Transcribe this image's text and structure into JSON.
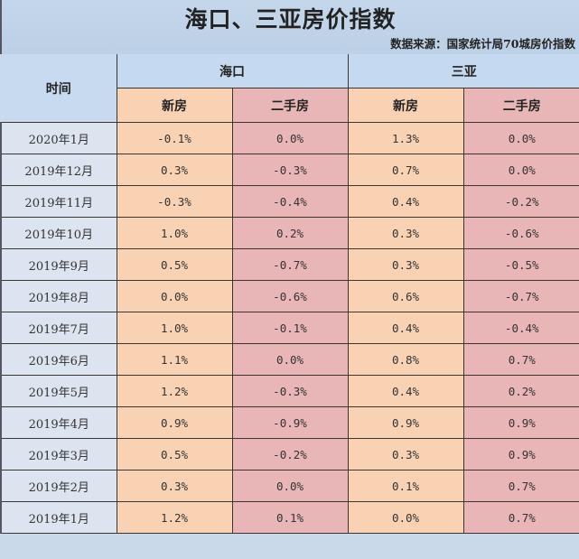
{
  "title": "海口、三亚房价指数",
  "source": "数据来源：国家统计局70城房价指数",
  "header": {
    "time": "时间",
    "cities": [
      "海口",
      "三亚"
    ],
    "sub": [
      "新房",
      "二手房",
      "新房",
      "二手房"
    ]
  },
  "colors": {
    "header_blue": "#c5d9f0",
    "new_house": "#f9d2b4",
    "used_house": "#e9b6b8",
    "date_col": "#dce4ef"
  },
  "rows": [
    {
      "date": "2020年1月",
      "hk_new": "-0.1%",
      "hk_used": "0.0%",
      "sy_new": "1.3%",
      "sy_used": "0.0%"
    },
    {
      "date": "2019年12月",
      "hk_new": "0.3%",
      "hk_used": "-0.3%",
      "sy_new": "0.7%",
      "sy_used": "0.0%"
    },
    {
      "date": "2019年11月",
      "hk_new": "-0.3%",
      "hk_used": "-0.4%",
      "sy_new": "0.4%",
      "sy_used": "-0.2%"
    },
    {
      "date": "2019年10月",
      "hk_new": "1.0%",
      "hk_used": "0.2%",
      "sy_new": "0.3%",
      "sy_used": "-0.6%"
    },
    {
      "date": "2019年9月",
      "hk_new": "0.5%",
      "hk_used": "-0.7%",
      "sy_new": "0.3%",
      "sy_used": "-0.5%"
    },
    {
      "date": "2019年8月",
      "hk_new": "0.0%",
      "hk_used": "-0.6%",
      "sy_new": "0.6%",
      "sy_used": "-0.7%"
    },
    {
      "date": "2019年7月",
      "hk_new": "1.0%",
      "hk_used": "-0.1%",
      "sy_new": "0.4%",
      "sy_used": "-0.4%"
    },
    {
      "date": "2019年6月",
      "hk_new": "1.1%",
      "hk_used": "0.0%",
      "sy_new": "0.8%",
      "sy_used": "0.7%"
    },
    {
      "date": "2019年5月",
      "hk_new": "1.2%",
      "hk_used": "-0.3%",
      "sy_new": "0.4%",
      "sy_used": "0.2%"
    },
    {
      "date": "2019年4月",
      "hk_new": "0.9%",
      "hk_used": "-0.9%",
      "sy_new": "0.9%",
      "sy_used": "0.9%"
    },
    {
      "date": "2019年3月",
      "hk_new": "0.5%",
      "hk_used": "-0.2%",
      "sy_new": "0.3%",
      "sy_used": "0.9%"
    },
    {
      "date": "2019年2月",
      "hk_new": "0.3%",
      "hk_used": "0.0%",
      "sy_new": "0.1%",
      "sy_used": "0.7%"
    },
    {
      "date": "2019年1月",
      "hk_new": "1.2%",
      "hk_used": "0.1%",
      "sy_new": "0.0%",
      "sy_used": "0.7%"
    }
  ]
}
